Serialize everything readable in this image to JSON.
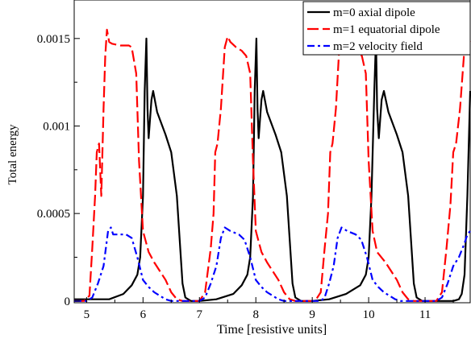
{
  "chart_data": {
    "type": "line",
    "xlabel": "Time [resistive units]",
    "ylabel": "Total energy",
    "xlim": [
      4.78,
      11.8
    ],
    "ylim": [
      -1e-05,
      0.00172
    ],
    "x_ticks": [
      {
        "value": 5,
        "label": "5"
      },
      {
        "value": 6,
        "label": "6"
      },
      {
        "value": 7,
        "label": "7"
      },
      {
        "value": 8,
        "label": "8"
      },
      {
        "value": 9,
        "label": "9"
      },
      {
        "value": 10,
        "label": "10"
      },
      {
        "value": 11,
        "label": "11"
      }
    ],
    "y_ticks": [
      {
        "value": 0,
        "label": "0"
      },
      {
        "value": 0.0005,
        "label": "0.0005"
      },
      {
        "value": 0.001,
        "label": "0.001"
      },
      {
        "value": 0.0015,
        "label": "0.0015"
      }
    ],
    "grid": false,
    "legend_position": "top-right",
    "series": [
      {
        "name": "m=0 axial dipole",
        "color": "#000000",
        "dash": "solid",
        "points": [
          [
            4.78,
            1e-05
          ],
          [
            5.4,
            1e-05
          ],
          [
            5.65,
            4e-05
          ],
          [
            5.8,
            9e-05
          ],
          [
            5.9,
            0.00015
          ],
          [
            5.95,
            0.00025
          ],
          [
            6.0,
            0.0006
          ],
          [
            6.03,
            0.0012
          ],
          [
            6.06,
            0.0015
          ],
          [
            6.08,
            0.0011
          ],
          [
            6.1,
            0.00093
          ],
          [
            6.15,
            0.00115
          ],
          [
            6.18,
            0.0012
          ],
          [
            6.25,
            0.00108
          ],
          [
            6.4,
            0.00095
          ],
          [
            6.5,
            0.00085
          ],
          [
            6.6,
            0.0006
          ],
          [
            6.65,
            0.00035
          ],
          [
            6.7,
            0.0001
          ],
          [
            6.75,
            2e-05
          ],
          [
            6.85,
            0.0
          ],
          [
            7.0,
            0.0
          ],
          [
            7.3,
            1e-05
          ],
          [
            7.6,
            4e-05
          ],
          [
            7.75,
            9e-05
          ],
          [
            7.85,
            0.00015
          ],
          [
            7.9,
            0.00025
          ],
          [
            7.95,
            0.0006
          ],
          [
            7.98,
            0.0012
          ],
          [
            8.01,
            0.0015
          ],
          [
            8.03,
            0.0011
          ],
          [
            8.05,
            0.00093
          ],
          [
            8.1,
            0.00115
          ],
          [
            8.13,
            0.0012
          ],
          [
            8.2,
            0.00108
          ],
          [
            8.35,
            0.00095
          ],
          [
            8.45,
            0.00085
          ],
          [
            8.55,
            0.0006
          ],
          [
            8.6,
            0.00035
          ],
          [
            8.65,
            0.0001
          ],
          [
            8.7,
            2e-05
          ],
          [
            8.8,
            0.0
          ],
          [
            9.0,
            0.0
          ],
          [
            9.3,
            1e-05
          ],
          [
            9.6,
            4e-05
          ],
          [
            9.85,
            9e-05
          ],
          [
            9.95,
            0.00015
          ],
          [
            10.0,
            0.00025
          ],
          [
            10.05,
            0.0006
          ],
          [
            10.1,
            0.0012
          ],
          [
            10.13,
            0.0015
          ],
          [
            10.15,
            0.0011
          ],
          [
            10.18,
            0.00093
          ],
          [
            10.23,
            0.00115
          ],
          [
            10.27,
            0.0012
          ],
          [
            10.35,
            0.00108
          ],
          [
            10.5,
            0.00095
          ],
          [
            10.6,
            0.00085
          ],
          [
            10.7,
            0.0006
          ],
          [
            10.75,
            0.00035
          ],
          [
            10.8,
            0.0001
          ],
          [
            10.85,
            2e-05
          ],
          [
            10.95,
            0.0
          ],
          [
            11.5,
            0.0
          ],
          [
            11.6,
            1e-05
          ],
          [
            11.65,
            4e-05
          ],
          [
            11.7,
            0.00015
          ],
          [
            11.75,
            0.0006
          ],
          [
            11.8,
            0.0012
          ]
        ]
      },
      {
        "name": "m=1 equatorial dipole",
        "color": "#ff0000",
        "dash": "dashed",
        "points": [
          [
            4.78,
            0.0
          ],
          [
            4.95,
            0.0
          ],
          [
            5.05,
            3e-05
          ],
          [
            5.1,
            0.0003
          ],
          [
            5.15,
            0.0006
          ],
          [
            5.18,
            0.00085
          ],
          [
            5.22,
            0.0009
          ],
          [
            5.26,
            0.0006
          ],
          [
            5.3,
            0.0011
          ],
          [
            5.33,
            0.0014
          ],
          [
            5.36,
            0.00155
          ],
          [
            5.4,
            0.00148
          ],
          [
            5.45,
            0.00147
          ],
          [
            5.6,
            0.00146
          ],
          [
            5.75,
            0.00146
          ],
          [
            5.8,
            0.00145
          ],
          [
            5.88,
            0.0013
          ],
          [
            5.93,
            0.0008
          ],
          [
            6.0,
            0.0004
          ],
          [
            6.1,
            0.00028
          ],
          [
            6.2,
            0.00022
          ],
          [
            6.4,
            0.00012
          ],
          [
            6.5,
            5e-05
          ],
          [
            6.6,
            1e-05
          ],
          [
            6.7,
            0.0
          ],
          [
            7.0,
            0.0
          ],
          [
            7.1,
            5e-05
          ],
          [
            7.2,
            0.0003
          ],
          [
            7.25,
            0.0005
          ],
          [
            7.28,
            0.00085
          ],
          [
            7.32,
            0.0009
          ],
          [
            7.38,
            0.0011
          ],
          [
            7.45,
            0.00145
          ],
          [
            7.5,
            0.00151
          ],
          [
            7.55,
            0.00148
          ],
          [
            7.65,
            0.00145
          ],
          [
            7.75,
            0.00143
          ],
          [
            7.83,
            0.0014
          ],
          [
            7.9,
            0.0013
          ],
          [
            7.95,
            0.0008
          ],
          [
            8.0,
            0.0004
          ],
          [
            8.1,
            0.00028
          ],
          [
            8.2,
            0.00022
          ],
          [
            8.4,
            0.00012
          ],
          [
            8.5,
            5e-05
          ],
          [
            8.6,
            1e-05
          ],
          [
            8.7,
            0.0
          ],
          [
            9.05,
            0.0
          ],
          [
            9.15,
            5e-05
          ],
          [
            9.22,
            0.0003
          ],
          [
            9.28,
            0.0005
          ],
          [
            9.32,
            0.00085
          ],
          [
            9.36,
            0.0009
          ],
          [
            9.42,
            0.0011
          ],
          [
            9.48,
            0.00145
          ],
          [
            9.53,
            0.00151
          ],
          [
            9.6,
            0.00148
          ],
          [
            9.7,
            0.00145
          ],
          [
            9.8,
            0.00143
          ],
          [
            9.88,
            0.0014
          ],
          [
            9.95,
            0.0013
          ],
          [
            10.0,
            0.0008
          ],
          [
            10.07,
            0.0004
          ],
          [
            10.15,
            0.00028
          ],
          [
            10.3,
            0.00022
          ],
          [
            10.5,
            0.00012
          ],
          [
            10.6,
            5e-05
          ],
          [
            10.7,
            1e-05
          ],
          [
            10.8,
            0.0
          ],
          [
            11.2,
            0.0
          ],
          [
            11.3,
            5e-05
          ],
          [
            11.38,
            0.0003
          ],
          [
            11.45,
            0.00055
          ],
          [
            11.5,
            0.00085
          ],
          [
            11.55,
            0.0009
          ],
          [
            11.62,
            0.0011
          ],
          [
            11.7,
            0.00145
          ],
          [
            11.75,
            0.0015
          ],
          [
            11.8,
            0.00148
          ]
        ]
      },
      {
        "name": "m=2 velocity field",
        "color": "#0000ff",
        "dash": "dashdot",
        "points": [
          [
            4.78,
            0.0
          ],
          [
            5.0,
            0.0
          ],
          [
            5.1,
            2e-05
          ],
          [
            5.2,
            0.0001
          ],
          [
            5.3,
            0.0002
          ],
          [
            5.38,
            0.0004
          ],
          [
            5.43,
            0.00042
          ],
          [
            5.47,
            0.00038
          ],
          [
            5.55,
            0.00038
          ],
          [
            5.7,
            0.00038
          ],
          [
            5.8,
            0.00036
          ],
          [
            5.9,
            0.00025
          ],
          [
            6.0,
            0.00012
          ],
          [
            6.1,
            8e-05
          ],
          [
            6.2,
            5e-05
          ],
          [
            6.4,
            1e-05
          ],
          [
            6.5,
            0.0
          ],
          [
            7.0,
            0.0
          ],
          [
            7.1,
            2e-05
          ],
          [
            7.2,
            0.0001
          ],
          [
            7.3,
            0.0002
          ],
          [
            7.38,
            0.00036
          ],
          [
            7.45,
            0.00042
          ],
          [
            7.55,
            0.0004
          ],
          [
            7.7,
            0.00038
          ],
          [
            7.8,
            0.00035
          ],
          [
            7.9,
            0.00025
          ],
          [
            8.0,
            0.00012
          ],
          [
            8.1,
            8e-05
          ],
          [
            8.2,
            5e-05
          ],
          [
            8.4,
            1e-05
          ],
          [
            8.5,
            0.0
          ],
          [
            9.15,
            0.0
          ],
          [
            9.22,
            2e-05
          ],
          [
            9.3,
            0.0001
          ],
          [
            9.38,
            0.0002
          ],
          [
            9.45,
            0.00036
          ],
          [
            9.52,
            0.00042
          ],
          [
            9.62,
            0.0004
          ],
          [
            9.77,
            0.00038
          ],
          [
            9.87,
            0.00035
          ],
          [
            9.97,
            0.00025
          ],
          [
            10.07,
            0.00012
          ],
          [
            10.17,
            8e-05
          ],
          [
            10.27,
            5e-05
          ],
          [
            10.47,
            1e-05
          ],
          [
            10.57,
            0.0
          ],
          [
            11.2,
            0.0
          ],
          [
            11.3,
            2e-05
          ],
          [
            11.4,
            0.0001
          ],
          [
            11.5,
            0.0002
          ],
          [
            11.6,
            0.00025
          ],
          [
            11.7,
            0.00033
          ],
          [
            11.75,
            0.00038
          ],
          [
            11.8,
            0.0004
          ]
        ]
      }
    ]
  }
}
